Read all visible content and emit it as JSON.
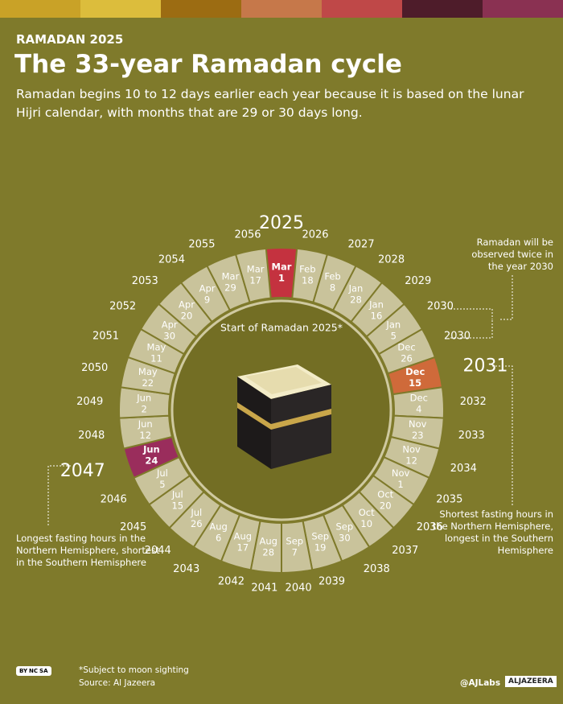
{
  "header": {
    "kicker": "RAMADAN 2025",
    "title": "The 33-year Ramadan cycle",
    "subtitle": "Ramadan begins 10 to 12 days earlier each year because it is based on the lunar Hijri calendar, with months that are 29 or 30 days long."
  },
  "cycle": {
    "center_label": "Start of Ramadan 2025*",
    "entries": [
      {
        "year": 2025,
        "month": "Mar",
        "day": 1,
        "highlight": "#c4323f"
      },
      {
        "year": 2026,
        "month": "Feb",
        "day": 18
      },
      {
        "year": 2027,
        "month": "Feb",
        "day": 8
      },
      {
        "year": 2028,
        "month": "Jan",
        "day": 28
      },
      {
        "year": 2029,
        "month": "Jan",
        "day": 16
      },
      {
        "year": 2030,
        "month": "Jan",
        "day": 5
      },
      {
        "year": 2030,
        "month": "Dec",
        "day": 26
      },
      {
        "year": 2031,
        "month": "Dec",
        "day": 15,
        "highlight": "#cf6a3a"
      },
      {
        "year": 2032,
        "month": "Dec",
        "day": 4
      },
      {
        "year": 2033,
        "month": "Nov",
        "day": 23
      },
      {
        "year": 2034,
        "month": "Nov",
        "day": 12
      },
      {
        "year": 2035,
        "month": "Nov",
        "day": 1
      },
      {
        "year": 2036,
        "month": "Oct",
        "day": 20
      },
      {
        "year": 2037,
        "month": "Oct",
        "day": 10
      },
      {
        "year": 2038,
        "month": "Sep",
        "day": 30
      },
      {
        "year": 2039,
        "month": "Sep",
        "day": 19
      },
      {
        "year": 2040,
        "month": "Sep",
        "day": 7
      },
      {
        "year": 2041,
        "month": "Aug",
        "day": 28
      },
      {
        "year": 2042,
        "month": "Aug",
        "day": 17
      },
      {
        "year": 2043,
        "month": "Aug",
        "day": 6
      },
      {
        "year": 2044,
        "month": "Jul",
        "day": 26
      },
      {
        "year": 2045,
        "month": "Jul",
        "day": 15
      },
      {
        "year": 2046,
        "month": "Jul",
        "day": 5
      },
      {
        "year": 2047,
        "month": "Jun",
        "day": 24,
        "highlight": "#9a2d5c"
      },
      {
        "year": 2048,
        "month": "Jun",
        "day": 12
      },
      {
        "year": 2049,
        "month": "Jun",
        "day": 2
      },
      {
        "year": 2050,
        "month": "May",
        "day": 22
      },
      {
        "year": 2051,
        "month": "May",
        "day": 11
      },
      {
        "year": 2052,
        "month": "Apr",
        "day": 30
      },
      {
        "year": 2053,
        "month": "Apr",
        "day": 20
      },
      {
        "year": 2054,
        "month": "Apr",
        "day": 9
      },
      {
        "year": 2055,
        "month": "Mar",
        "day": 29
      },
      {
        "year": 2056,
        "month": "Mar",
        "day": 17
      }
    ]
  },
  "annotations": {
    "twice": "Ramadan will be observed twice in the year 2030",
    "shortest": "Shortest fasting hours in the Northern Hemisphere, longest in the Southern Hemisphere",
    "longest": "Longest fasting hours in the Northern Hemisphere, shortest in the Southern Hemisphere"
  },
  "footer": {
    "license": [
      "BY",
      "NC",
      "SA"
    ],
    "note": "*Subject to moon sighting",
    "source": "Source:  Al Jazeera",
    "handle": "@AJLabs",
    "brand": "ALJAZEERA"
  }
}
